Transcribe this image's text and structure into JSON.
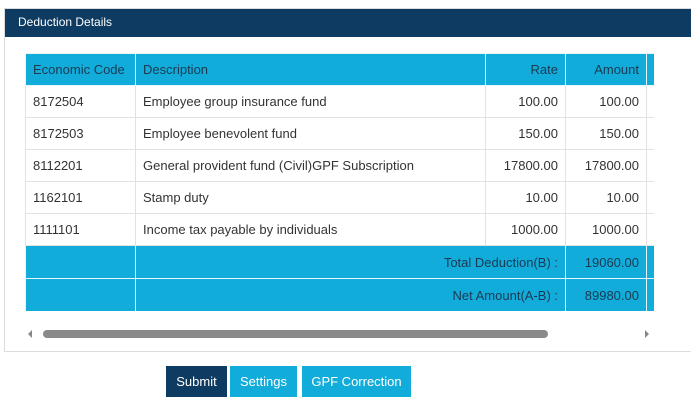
{
  "panel": {
    "title": "Deduction Details"
  },
  "table": {
    "headers": [
      "Economic Code",
      "Description",
      "Rate",
      "Amount"
    ],
    "rows": [
      [
        "8172504",
        "Employee group insurance fund",
        "100.00",
        "100.00"
      ],
      [
        "8172503",
        "Employee benevolent fund",
        "150.00",
        "150.00"
      ],
      [
        "8112201",
        "General provident fund (Civil)GPF Subscription",
        "17800.00",
        "17800.00"
      ],
      [
        "1162101",
        "Stamp duty",
        "10.00",
        "10.00"
      ],
      [
        "1111101",
        "Income tax payable by individuals",
        "1000.00",
        "1000.00"
      ]
    ],
    "totals": [
      {
        "label": "Total Deduction(B) :",
        "value": "19060.00"
      },
      {
        "label": "Net Amount(A-B) :",
        "value": "89980.00"
      }
    ]
  },
  "buttons": [
    "Submit",
    "Settings",
    "GPF Correction"
  ]
}
